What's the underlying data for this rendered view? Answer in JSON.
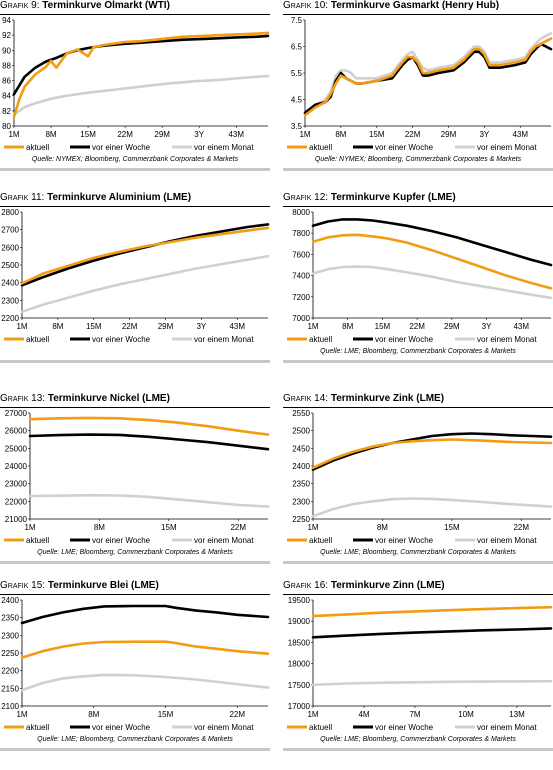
{
  "colors": {
    "aktuell": "#f39c12",
    "woche": "#000000",
    "monat": "#d0d0d0"
  },
  "legend_labels": [
    "aktuell",
    "vor einer Woche",
    "vor einem Monat"
  ],
  "chart_data": [
    {
      "type": "line",
      "prefix": "Grafik 9:",
      "title": "Terminkurve Ölmarkt (WTI)",
      "source": "Quelle: NYMEX; Bloomberg, Commerzbank Corporates & Markets",
      "xticks": [
        "1M",
        "8M",
        "15M",
        "22M",
        "29M",
        "3Y",
        "43M"
      ],
      "yticks": [
        "80",
        "82",
        "84",
        "86",
        "88",
        "90",
        "92",
        "94"
      ],
      "ylim": [
        80,
        94
      ],
      "series": [
        {
          "name": "aktuell",
          "x": [
            1,
            2,
            3,
            5,
            7,
            8,
            9,
            11,
            13,
            15,
            16,
            18,
            20,
            22,
            25,
            29,
            33,
            37,
            40,
            43,
            47,
            49
          ],
          "values": [
            81.2,
            83.5,
            85.2,
            86.8,
            87.8,
            88.6,
            87.7,
            89.6,
            90.1,
            89.2,
            90.4,
            90.7,
            90.9,
            91.1,
            91.2,
            91.5,
            91.8,
            91.9,
            92.0,
            92.1,
            92.2,
            92.3
          ]
        },
        {
          "name": "vor einer Woche",
          "x": [
            1,
            3,
            5,
            7,
            9,
            11,
            13,
            15,
            18,
            21,
            25,
            29,
            33,
            37,
            40,
            43,
            47,
            49
          ],
          "values": [
            84.2,
            86.5,
            87.7,
            88.5,
            89.0,
            89.6,
            90.0,
            90.3,
            90.6,
            90.8,
            91.0,
            91.2,
            91.4,
            91.5,
            91.6,
            91.7,
            91.8,
            91.9
          ]
        },
        {
          "name": "vor einem Monat",
          "x": [
            1,
            3,
            5,
            8,
            11,
            15,
            20,
            25,
            30,
            35,
            40,
            45,
            49
          ],
          "values": [
            81.5,
            82.5,
            83.0,
            83.6,
            84.0,
            84.4,
            84.8,
            85.2,
            85.6,
            85.9,
            86.1,
            86.4,
            86.6
          ]
        }
      ]
    },
    {
      "type": "line",
      "prefix": "Grafik 10:",
      "title": "Terminkurve Gasmarkt (Henry Hub)",
      "source": "Quelle: NYMEX; Bloomberg, Commerzbank Corporates & Markets",
      "xticks": [
        "1M",
        "8M",
        "15M",
        "22M",
        "29M",
        "3Y",
        "43M"
      ],
      "yticks": [
        "3.5",
        "4.5",
        "5.5",
        "6.5",
        "7.5"
      ],
      "ylim": [
        3.5,
        7.5
      ],
      "series": [
        {
          "name": "aktuell",
          "x": [
            1,
            3,
            5,
            6,
            7,
            8,
            9,
            10,
            11,
            12,
            15,
            18,
            20,
            21,
            22,
            23,
            24,
            25,
            27,
            30,
            32,
            33,
            34,
            35,
            36,
            37,
            39,
            42,
            44,
            45,
            46,
            47,
            48,
            49
          ],
          "values": [
            3.9,
            4.2,
            4.4,
            4.7,
            5.1,
            5.4,
            5.3,
            5.2,
            5.1,
            5.1,
            5.2,
            5.4,
            5.9,
            6.1,
            6.1,
            5.9,
            5.5,
            5.5,
            5.6,
            5.7,
            6.0,
            6.2,
            6.4,
            6.4,
            6.2,
            5.8,
            5.8,
            5.9,
            6.0,
            6.3,
            6.5,
            6.6,
            6.7,
            6.8
          ]
        },
        {
          "name": "vor einer Woche",
          "x": [
            1,
            3,
            5,
            6,
            7,
            8,
            9,
            10,
            11,
            12,
            15,
            18,
            20,
            21,
            22,
            23,
            24,
            25,
            27,
            30,
            32,
            33,
            34,
            35,
            36,
            37,
            39,
            42,
            44,
            45,
            46,
            47,
            48,
            49
          ],
          "values": [
            4.0,
            4.3,
            4.4,
            4.6,
            5.2,
            5.5,
            5.3,
            5.2,
            5.1,
            5.1,
            5.2,
            5.3,
            5.8,
            6.0,
            6.1,
            5.8,
            5.4,
            5.4,
            5.5,
            5.6,
            5.9,
            6.1,
            6.3,
            6.3,
            6.1,
            5.7,
            5.7,
            5.8,
            5.9,
            6.2,
            6.4,
            6.6,
            6.5,
            6.4
          ]
        },
        {
          "name": "vor einem Monat",
          "x": [
            1,
            3,
            5,
            6,
            7,
            8,
            9,
            10,
            11,
            12,
            15,
            18,
            20,
            21,
            22,
            23,
            24,
            25,
            27,
            30,
            32,
            33,
            34,
            35,
            36,
            37,
            39,
            42,
            44,
            45,
            46,
            47,
            48,
            49
          ],
          "values": [
            4.0,
            4.3,
            4.5,
            4.8,
            5.4,
            5.6,
            5.6,
            5.5,
            5.3,
            5.3,
            5.3,
            5.5,
            6.0,
            6.2,
            6.3,
            6.0,
            5.7,
            5.6,
            5.7,
            5.8,
            6.1,
            6.3,
            6.5,
            6.5,
            6.3,
            5.9,
            5.9,
            6.0,
            6.1,
            6.4,
            6.6,
            6.8,
            6.9,
            7.0
          ]
        }
      ]
    },
    {
      "type": "line",
      "prefix": "Grafik 11:",
      "title": "Terminkurve Aluminium (LME)",
      "source": "",
      "xticks": [
        "1M",
        "8M",
        "15M",
        "22M",
        "29M",
        "3Y",
        "43M"
      ],
      "yticks": [
        "2200",
        "2300",
        "2400",
        "2500",
        "2600",
        "2700",
        "2800"
      ],
      "ylim": [
        2200,
        2800
      ],
      "series": [
        {
          "name": "aktuell",
          "x": [
            1,
            5,
            10,
            15,
            20,
            25,
            30,
            35,
            40,
            45,
            49
          ],
          "values": [
            2395,
            2450,
            2495,
            2540,
            2575,
            2605,
            2630,
            2655,
            2675,
            2695,
            2710
          ]
        },
        {
          "name": "vor einer Woche",
          "x": [
            1,
            5,
            10,
            15,
            20,
            25,
            30,
            35,
            40,
            45,
            49
          ],
          "values": [
            2385,
            2430,
            2480,
            2525,
            2565,
            2600,
            2635,
            2665,
            2690,
            2715,
            2730
          ]
        },
        {
          "name": "vor einem Monat",
          "x": [
            1,
            5,
            10,
            15,
            20,
            25,
            30,
            35,
            40,
            45,
            49
          ],
          "values": [
            2235,
            2275,
            2315,
            2355,
            2390,
            2420,
            2450,
            2480,
            2505,
            2530,
            2550
          ]
        }
      ]
    },
    {
      "type": "line",
      "prefix": "Grafik 12:",
      "title": "Terminkurve Kupfer (LME)",
      "source": "Quelle: LME; Bloomberg, Commerzbank Corporates & Markets",
      "xticks": [
        "1M",
        "8M",
        "15M",
        "22M",
        "29M",
        "3Y",
        "43M"
      ],
      "yticks": [
        "7000",
        "7200",
        "7400",
        "7600",
        "7800",
        "8000"
      ],
      "ylim": [
        7000,
        8000
      ],
      "series": [
        {
          "name": "aktuell",
          "x": [
            1,
            4,
            7,
            10,
            13,
            16,
            20,
            25,
            30,
            35,
            40,
            45,
            49
          ],
          "values": [
            7720,
            7760,
            7780,
            7785,
            7770,
            7750,
            7710,
            7640,
            7560,
            7480,
            7400,
            7330,
            7280
          ]
        },
        {
          "name": "vor einer Woche",
          "x": [
            1,
            4,
            7,
            10,
            13,
            16,
            20,
            25,
            30,
            35,
            40,
            45,
            49
          ],
          "values": [
            7870,
            7910,
            7930,
            7930,
            7920,
            7900,
            7870,
            7820,
            7760,
            7690,
            7620,
            7550,
            7500
          ]
        },
        {
          "name": "vor einem Monat",
          "x": [
            1,
            4,
            7,
            10,
            13,
            16,
            20,
            25,
            30,
            35,
            40,
            45,
            49
          ],
          "values": [
            7420,
            7460,
            7480,
            7485,
            7480,
            7460,
            7430,
            7390,
            7340,
            7300,
            7260,
            7220,
            7190
          ]
        }
      ]
    },
    {
      "type": "line",
      "prefix": "Grafik 13:",
      "title": "Terminkurve Nickel (LME)",
      "source": "Quelle: LME; Bloomberg, Commerzbank Corporates & Markets",
      "xticks": [
        "1M",
        "8M",
        "15M",
        "22M"
      ],
      "yticks": [
        "21000",
        "22000",
        "23000",
        "24000",
        "25000",
        "26000",
        "27000"
      ],
      "ylim": [
        21000,
        27000
      ],
      "series": [
        {
          "name": "aktuell",
          "x": [
            1,
            4,
            7,
            10,
            13,
            16,
            19,
            22,
            25
          ],
          "values": [
            26650,
            26700,
            26720,
            26700,
            26600,
            26450,
            26250,
            26000,
            25780
          ]
        },
        {
          "name": "vor einer Woche",
          "x": [
            1,
            4,
            7,
            10,
            13,
            16,
            19,
            22,
            25
          ],
          "values": [
            25700,
            25750,
            25780,
            25760,
            25650,
            25500,
            25350,
            25150,
            24950
          ]
        },
        {
          "name": "vor einem Monat",
          "x": [
            1,
            4,
            7,
            10,
            13,
            16,
            19,
            22,
            25
          ],
          "values": [
            22300,
            22320,
            22350,
            22330,
            22250,
            22100,
            21950,
            21800,
            21700
          ]
        }
      ]
    },
    {
      "type": "line",
      "prefix": "Grafik 14:",
      "title": "Terminkurve Zink (LME)",
      "source": "Quelle: LME; Bloomberg, Commerzbank Corporates & Markets",
      "xticks": [
        "1M",
        "8M",
        "15M",
        "22M"
      ],
      "yticks": [
        "2250",
        "2300",
        "2350",
        "2400",
        "2450",
        "2500",
        "2550"
      ],
      "ylim": [
        2250,
        2550
      ],
      "series": [
        {
          "name": "aktuell",
          "x": [
            1,
            3,
            5,
            7,
            9,
            11,
            13,
            15,
            18,
            21,
            25
          ],
          "values": [
            2395,
            2420,
            2440,
            2455,
            2465,
            2470,
            2473,
            2475,
            2472,
            2468,
            2465
          ]
        },
        {
          "name": "vor einer Woche",
          "x": [
            1,
            3,
            5,
            7,
            9,
            11,
            13,
            15,
            17,
            19,
            21,
            23,
            25
          ],
          "values": [
            2390,
            2415,
            2435,
            2452,
            2465,
            2475,
            2485,
            2490,
            2492,
            2490,
            2487,
            2485,
            2483
          ]
        },
        {
          "name": "vor einem Monat",
          "x": [
            1,
            3,
            5,
            7,
            9,
            11,
            13,
            15,
            18,
            21,
            25
          ],
          "values": [
            2258,
            2278,
            2292,
            2300,
            2306,
            2308,
            2307,
            2304,
            2298,
            2292,
            2285
          ]
        }
      ]
    },
    {
      "type": "line",
      "prefix": "Grafik 15:",
      "title": "Terminkurve Blei (LME)",
      "source": "Quelle: LME; Bloomberg, Commerzbank Corporates & Markets",
      "xticks": [
        "1M",
        "8M",
        "15M",
        "22M"
      ],
      "yticks": [
        "2100",
        "2150",
        "2200",
        "2250",
        "2300",
        "2350",
        "2400"
      ],
      "ylim": [
        2100,
        2400
      ],
      "series": [
        {
          "name": "aktuell",
          "x": [
            1,
            3,
            5,
            7,
            9,
            12,
            15,
            16,
            18,
            20,
            22,
            25
          ],
          "values": [
            2237,
            2255,
            2268,
            2277,
            2281,
            2282,
            2282,
            2278,
            2268,
            2262,
            2255,
            2248
          ]
        },
        {
          "name": "vor einer Woche",
          "x": [
            1,
            3,
            5,
            7,
            9,
            12,
            15,
            16,
            18,
            20,
            22,
            25
          ],
          "values": [
            2335,
            2352,
            2365,
            2375,
            2382,
            2383,
            2383,
            2378,
            2370,
            2365,
            2358,
            2352
          ]
        },
        {
          "name": "vor einem Monat",
          "x": [
            1,
            3,
            5,
            7,
            9,
            12,
            15,
            18,
            21,
            25
          ],
          "values": [
            2145,
            2165,
            2178,
            2184,
            2188,
            2187,
            2182,
            2175,
            2165,
            2152
          ]
        }
      ]
    },
    {
      "type": "line",
      "prefix": "Grafik 16:",
      "title": "Terminkurve Zinn (LME)",
      "source": "Quelle: LME; Bloomberg, Commerzbank Corporates & Markets",
      "xticks": [
        "1M",
        "4M",
        "7M",
        "10M",
        "13M"
      ],
      "yticks": [
        "17000",
        "17500",
        "18000",
        "18500",
        "19000",
        "19500"
      ],
      "ylim": [
        17000,
        19500
      ],
      "series": [
        {
          "name": "aktuell",
          "x": [
            1,
            3,
            5,
            7,
            9,
            11,
            13,
            15
          ],
          "values": [
            19120,
            19160,
            19200,
            19230,
            19260,
            19285,
            19310,
            19330
          ]
        },
        {
          "name": "vor einer Woche",
          "x": [
            1,
            3,
            5,
            7,
            9,
            11,
            13,
            15
          ],
          "values": [
            18620,
            18660,
            18700,
            18730,
            18760,
            18785,
            18805,
            18830
          ]
        },
        {
          "name": "vor einem Monat",
          "x": [
            1,
            3,
            5,
            7,
            9,
            11,
            13,
            15
          ],
          "values": [
            17500,
            17530,
            17550,
            17560,
            17570,
            17575,
            17580,
            17585
          ]
        }
      ]
    }
  ]
}
